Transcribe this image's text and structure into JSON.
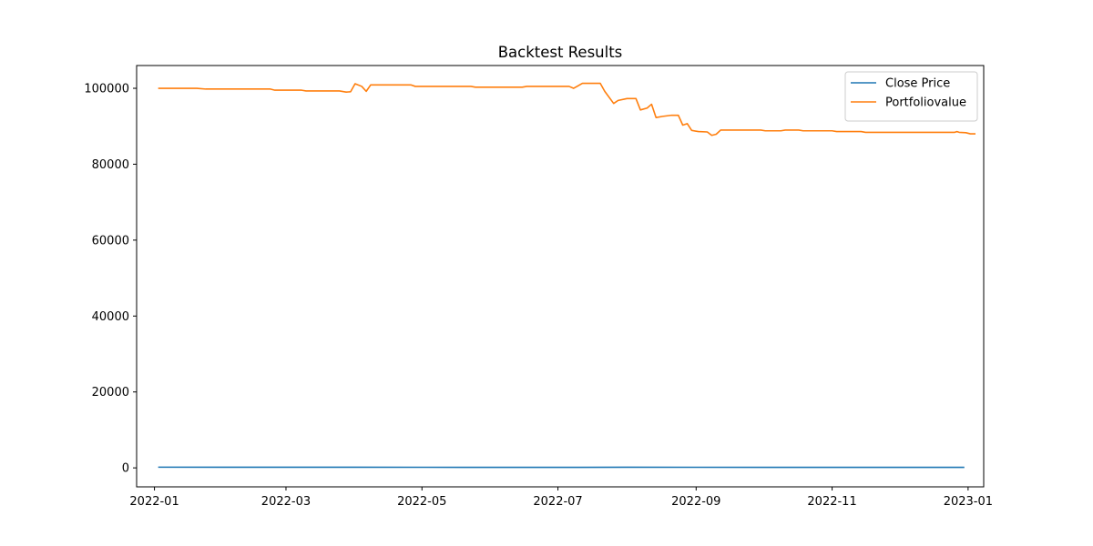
{
  "chart_data": {
    "type": "line",
    "title": "Backtest Results",
    "xlabel": "",
    "ylabel": "",
    "x_axis": {
      "kind": "date",
      "range": [
        "2021-12-24",
        "2023-01-08"
      ],
      "ticks": [
        "2022-01-01",
        "2022-03-01",
        "2022-05-01",
        "2022-07-01",
        "2022-09-01",
        "2022-11-01",
        "2023-01-01"
      ],
      "tick_labels": [
        "2022-01",
        "2022-03",
        "2022-05",
        "2022-07",
        "2022-09",
        "2022-11",
        "2023-01"
      ]
    },
    "y_axis": {
      "range": [
        -5000,
        106000
      ],
      "ticks": [
        0,
        20000,
        40000,
        60000,
        80000,
        100000
      ],
      "tick_labels": [
        "0",
        "20000",
        "40000",
        "60000",
        "80000",
        "100000"
      ]
    },
    "grid": false,
    "legend": {
      "placement": "top-right"
    },
    "series": [
      {
        "name": "Close Price",
        "color": "#1f77b4",
        "points": [
          [
            "2022-01-03",
            182
          ],
          [
            "2022-02-01",
            174
          ],
          [
            "2022-03-01",
            163
          ],
          [
            "2022-04-01",
            174
          ],
          [
            "2022-05-02",
            157
          ],
          [
            "2022-06-01",
            148
          ],
          [
            "2022-07-01",
            139
          ],
          [
            "2022-08-01",
            161
          ],
          [
            "2022-09-01",
            157
          ],
          [
            "2022-10-03",
            142
          ],
          [
            "2022-11-01",
            150
          ],
          [
            "2022-12-01",
            148
          ],
          [
            "2022-12-30",
            130
          ]
        ]
      },
      {
        "name": "Portfoliovalue",
        "color": "#ff7f0e",
        "points": [
          [
            "2022-01-03",
            100000
          ],
          [
            "2022-01-20",
            100000
          ],
          [
            "2022-01-24",
            99800
          ],
          [
            "2022-02-22",
            99800
          ],
          [
            "2022-02-24",
            99500
          ],
          [
            "2022-03-08",
            99500
          ],
          [
            "2022-03-10",
            99300
          ],
          [
            "2022-03-25",
            99300
          ],
          [
            "2022-03-28",
            99000
          ],
          [
            "2022-03-30",
            99100
          ],
          [
            "2022-04-01",
            101200
          ],
          [
            "2022-04-04",
            100500
          ],
          [
            "2022-04-06",
            99200
          ],
          [
            "2022-04-08",
            100900
          ],
          [
            "2022-04-26",
            100900
          ],
          [
            "2022-04-28",
            100500
          ],
          [
            "2022-05-23",
            100500
          ],
          [
            "2022-05-25",
            100300
          ],
          [
            "2022-06-15",
            100300
          ],
          [
            "2022-06-17",
            100500
          ],
          [
            "2022-07-06",
            100500
          ],
          [
            "2022-07-08",
            100000
          ],
          [
            "2022-07-12",
            101300
          ],
          [
            "2022-07-20",
            101300
          ],
          [
            "2022-07-22",
            99200
          ],
          [
            "2022-07-26",
            96000
          ],
          [
            "2022-07-28",
            96800
          ],
          [
            "2022-08-01",
            97300
          ],
          [
            "2022-08-05",
            97300
          ],
          [
            "2022-08-07",
            94300
          ],
          [
            "2022-08-10",
            94800
          ],
          [
            "2022-08-12",
            95800
          ],
          [
            "2022-08-14",
            92300
          ],
          [
            "2022-08-17",
            92600
          ],
          [
            "2022-08-21",
            92900
          ],
          [
            "2022-08-24",
            92900
          ],
          [
            "2022-08-26",
            90300
          ],
          [
            "2022-08-28",
            90700
          ],
          [
            "2022-08-30",
            88900
          ],
          [
            "2022-09-02",
            88600
          ],
          [
            "2022-09-06",
            88500
          ],
          [
            "2022-09-08",
            87600
          ],
          [
            "2022-09-10",
            87900
          ],
          [
            "2022-09-12",
            89000
          ],
          [
            "2022-09-30",
            89000
          ],
          [
            "2022-10-02",
            88800
          ],
          [
            "2022-10-09",
            88800
          ],
          [
            "2022-10-11",
            89000
          ],
          [
            "2022-10-17",
            89000
          ],
          [
            "2022-10-19",
            88800
          ],
          [
            "2022-11-01",
            88800
          ],
          [
            "2022-11-03",
            88600
          ],
          [
            "2022-11-14",
            88600
          ],
          [
            "2022-11-16",
            88400
          ],
          [
            "2022-12-26",
            88400
          ],
          [
            "2022-12-27",
            88600
          ],
          [
            "2022-12-28",
            88400
          ],
          [
            "2022-12-31",
            88300
          ],
          [
            "2023-01-02",
            88000
          ],
          [
            "2023-01-04",
            88000
          ]
        ]
      }
    ]
  }
}
